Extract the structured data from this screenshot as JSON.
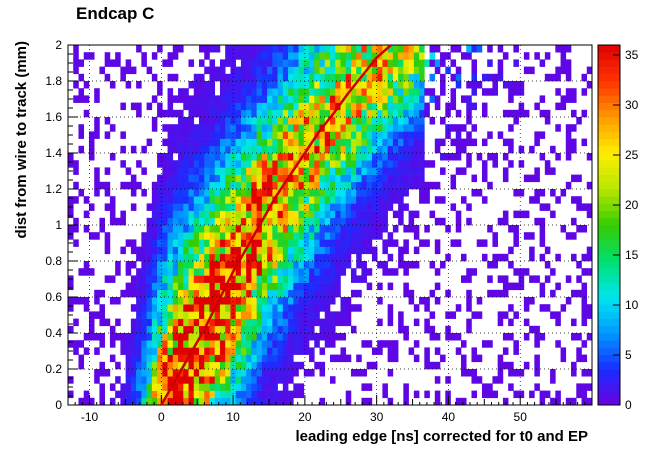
{
  "chart_data": {
    "type": "heatmap",
    "title": "Endcap C",
    "xlabel": "leading edge [ns] corrected for t0 and EP",
    "ylabel": "dist from wire to track (mm)",
    "xlim": [
      -13,
      60
    ],
    "ylim": [
      0,
      2
    ],
    "x_ticks": [
      -10,
      0,
      10,
      20,
      30,
      40,
      50
    ],
    "y_ticks": [
      0,
      0.2,
      0.4,
      0.6,
      0.8,
      1,
      1.2,
      1.4,
      1.6,
      1.8,
      2
    ],
    "y_tick_labels": [
      "0",
      "0.2",
      "0.4",
      "0.6",
      "0.8",
      "1",
      "1.2",
      "1.4",
      "1.6",
      "1.8",
      "2"
    ],
    "z_range": [
      0,
      36
    ],
    "z_ticks": [
      0,
      5,
      10,
      15,
      20,
      25,
      30,
      35
    ],
    "grid": true,
    "colormap": [
      "#6a00e0",
      "#1a2dff",
      "#0099ff",
      "#00e6f0",
      "#00e070",
      "#33cc00",
      "#b8e600",
      "#ffee00",
      "#ff9900",
      "#ff3300",
      "#e00000"
    ],
    "fit_curve": {
      "color": "#cc0000",
      "points": [
        [
          0,
          0
        ],
        [
          2,
          0.14
        ],
        [
          4,
          0.28
        ],
        [
          6,
          0.42
        ],
        [
          8,
          0.58
        ],
        [
          10,
          0.74
        ],
        [
          12,
          0.88
        ],
        [
          14,
          1.02
        ],
        [
          16,
          1.16
        ],
        [
          18,
          1.28
        ],
        [
          20,
          1.4
        ],
        [
          22,
          1.52
        ],
        [
          24,
          1.62
        ],
        [
          26,
          1.73
        ],
        [
          28,
          1.83
        ],
        [
          30,
          1.93
        ],
        [
          32,
          2.0
        ]
      ]
    },
    "band": {
      "peak_count": 36,
      "ridge_x_of_y": [
        [
          0,
          1.5
        ],
        [
          0.2,
          3.5
        ],
        [
          0.4,
          6.0
        ],
        [
          0.6,
          8.0
        ],
        [
          0.8,
          10.5
        ],
        [
          1.0,
          13.0
        ],
        [
          1.2,
          16.0
        ],
        [
          1.4,
          19.5
        ],
        [
          1.6,
          23.5
        ],
        [
          1.8,
          28.0
        ],
        [
          2.0,
          31.0
        ]
      ]
    }
  }
}
